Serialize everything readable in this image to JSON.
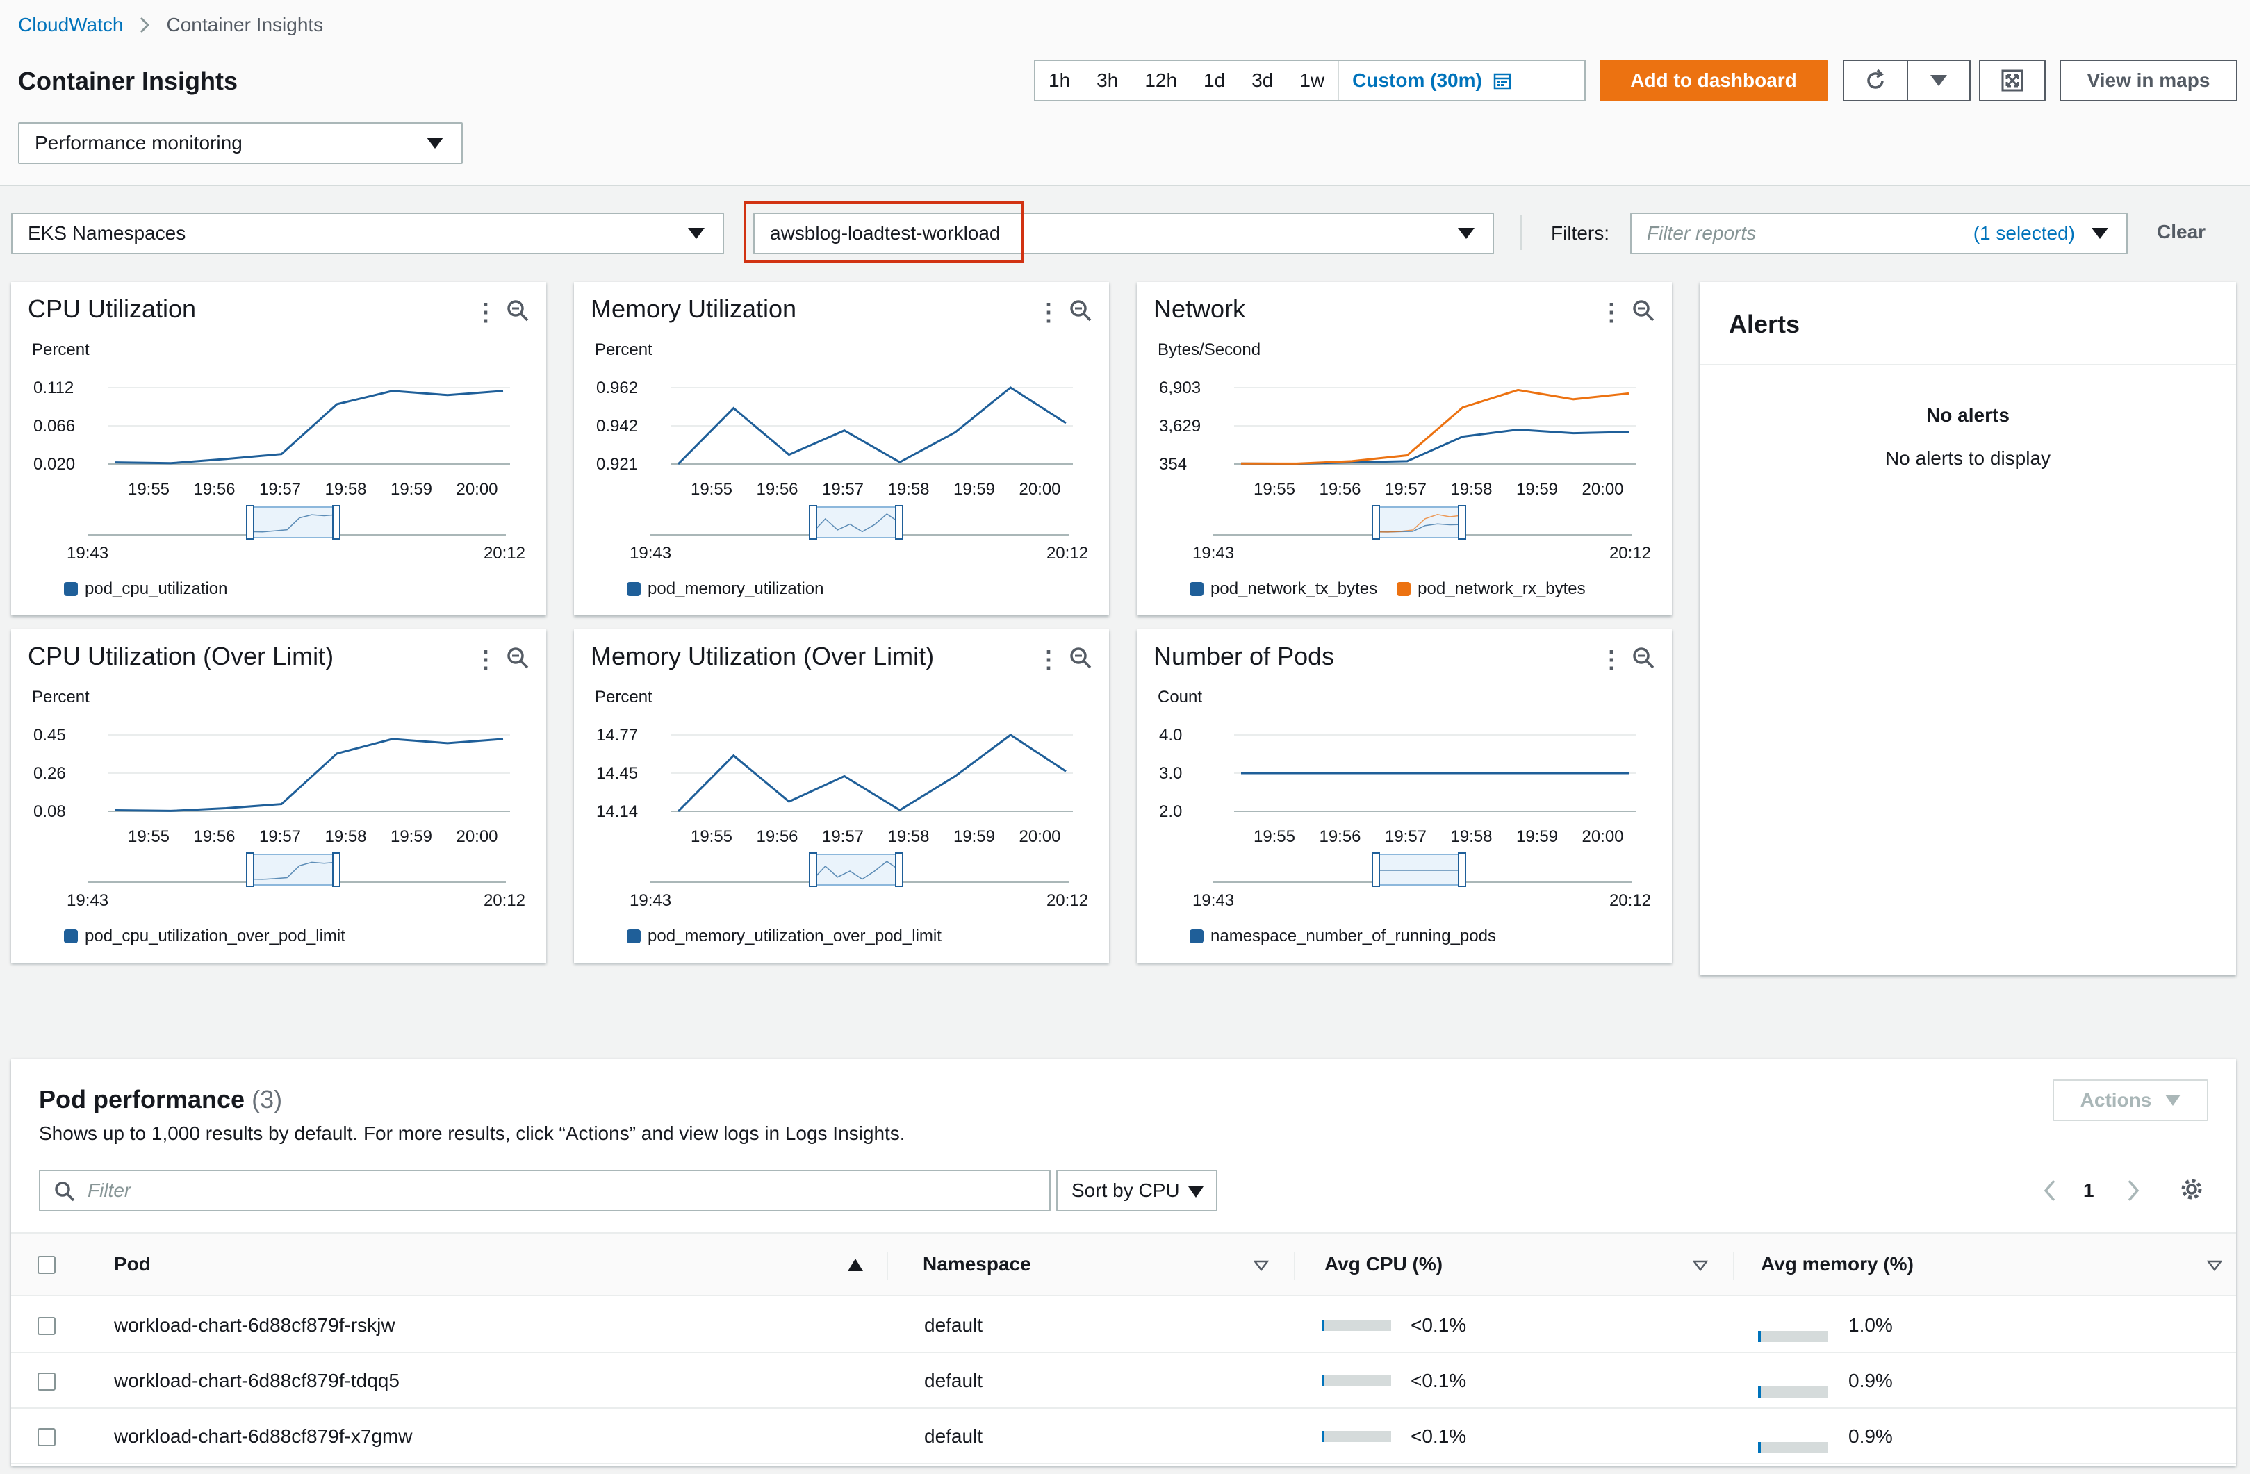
{
  "breadcrumb": {
    "root": "CloudWatch",
    "current": "Container Insights"
  },
  "page_title": "Container Insights",
  "view_select": "Performance monitoring",
  "time_ranges": [
    "1h",
    "3h",
    "12h",
    "1d",
    "3d",
    "1w"
  ],
  "time_custom": "Custom (30m)",
  "actions": {
    "add_dashboard": "Add to dashboard",
    "view_maps": "View in maps"
  },
  "filters": {
    "resource_type": "EKS Namespaces",
    "resource": "awsblog-loadtest-workload",
    "filters_label": "Filters:",
    "filter_placeholder": "Filter reports",
    "filter_count": "(1 selected)",
    "clear": "Clear"
  },
  "colors": {
    "series_blue": "#1f5f99",
    "series_orange": "#ec7211",
    "accent": "#0073bb",
    "highlight": "#d13212"
  },
  "charts": [
    {
      "title": "CPU Utilization",
      "unit": "Percent",
      "yticks": [
        "0.112",
        "0.066",
        "0.020"
      ],
      "ymin": 0.02,
      "ymax": 0.112,
      "xticks": [
        "19:55",
        "19:56",
        "19:57",
        "19:58",
        "19:59",
        "20:00"
      ],
      "range_start": "19:43",
      "range_end": "20:12",
      "series": [
        {
          "name": "pod_cpu_utilization",
          "color": "#1f5f99",
          "x": [
            0,
            1,
            2,
            3,
            4,
            5,
            6,
            7
          ],
          "y": [
            0.022,
            0.021,
            0.026,
            0.032,
            0.092,
            0.108,
            0.103,
            0.108
          ]
        }
      ]
    },
    {
      "title": "Memory Utilization",
      "unit": "Percent",
      "yticks": [
        "0.962",
        "0.942",
        "0.921"
      ],
      "ymin": 0.921,
      "ymax": 0.962,
      "xticks": [
        "19:55",
        "19:56",
        "19:57",
        "19:58",
        "19:59",
        "20:00"
      ],
      "range_start": "19:43",
      "range_end": "20:12",
      "series": [
        {
          "name": "pod_memory_utilization",
          "color": "#1f5f99",
          "x": [
            0,
            1,
            2,
            3,
            4,
            5,
            6,
            7
          ],
          "y": [
            0.921,
            0.951,
            0.926,
            0.939,
            0.922,
            0.938,
            0.962,
            0.943
          ]
        }
      ]
    },
    {
      "title": "Network",
      "unit": "Bytes/Second",
      "yticks": [
        "6,903",
        "3,629",
        "354"
      ],
      "ymin": 354,
      "ymax": 6903,
      "xticks": [
        "19:55",
        "19:56",
        "19:57",
        "19:58",
        "19:59",
        "20:00"
      ],
      "range_start": "19:43",
      "range_end": "20:12",
      "series": [
        {
          "name": "pod_network_tx_bytes",
          "color": "#1f5f99",
          "x": [
            0,
            1,
            2,
            3,
            4,
            5,
            6,
            7
          ],
          "y": [
            400,
            380,
            500,
            600,
            2700,
            3300,
            3000,
            3100
          ]
        },
        {
          "name": "pod_network_rx_bytes",
          "color": "#ec7211",
          "x": [
            0,
            1,
            2,
            3,
            4,
            5,
            6,
            7
          ],
          "y": [
            400,
            390,
            600,
            1100,
            5200,
            6700,
            5900,
            6400
          ]
        }
      ]
    },
    {
      "title": "CPU Utilization (Over Limit)",
      "unit": "Percent",
      "yticks": [
        "0.45",
        "0.26",
        "0.08"
      ],
      "ymin": 0.08,
      "ymax": 0.45,
      "xticks": [
        "19:55",
        "19:56",
        "19:57",
        "19:58",
        "19:59",
        "20:00"
      ],
      "range_start": "19:43",
      "range_end": "20:12",
      "series": [
        {
          "name": "pod_cpu_utilization_over_pod_limit",
          "color": "#1f5f99",
          "x": [
            0,
            1,
            2,
            3,
            4,
            5,
            6,
            7
          ],
          "y": [
            0.085,
            0.082,
            0.095,
            0.115,
            0.36,
            0.43,
            0.41,
            0.43
          ]
        }
      ]
    },
    {
      "title": "Memory Utilization (Over Limit)",
      "unit": "Percent",
      "yticks": [
        "14.77",
        "14.45",
        "14.14"
      ],
      "ymin": 14.14,
      "ymax": 14.77,
      "xticks": [
        "19:55",
        "19:56",
        "19:57",
        "19:58",
        "19:59",
        "20:00"
      ],
      "range_start": "19:43",
      "range_end": "20:12",
      "series": [
        {
          "name": "pod_memory_utilization_over_pod_limit",
          "color": "#1f5f99",
          "x": [
            0,
            1,
            2,
            3,
            4,
            5,
            6,
            7
          ],
          "y": [
            14.14,
            14.6,
            14.22,
            14.43,
            14.15,
            14.43,
            14.77,
            14.47
          ]
        }
      ]
    },
    {
      "title": "Number of Pods",
      "unit": "Count",
      "yticks": [
        "4.0",
        "3.0",
        "2.0"
      ],
      "ymin": 2.0,
      "ymax": 4.0,
      "xticks": [
        "19:55",
        "19:56",
        "19:57",
        "19:58",
        "19:59",
        "20:00"
      ],
      "range_start": "19:43",
      "range_end": "20:12",
      "series": [
        {
          "name": "namespace_number_of_running_pods",
          "color": "#1f5f99",
          "x": [
            0,
            7
          ],
          "y": [
            3.0,
            3.0
          ]
        }
      ]
    }
  ],
  "alerts": {
    "title": "Alerts",
    "empty_title": "No alerts",
    "empty_text": "No alerts to display"
  },
  "pods": {
    "title": "Pod performance",
    "count": "(3)",
    "description": "Shows up to 1,000 results by default. For more results, click “Actions” and view logs in Logs Insights.",
    "actions": "Actions",
    "filter_placeholder": "Filter",
    "sort": "Sort by CPU",
    "page": "1",
    "columns": [
      "Pod",
      "Namespace",
      "Avg CPU (%)",
      "Avg memory (%)"
    ],
    "rows": [
      {
        "pod": "workload-chart-6d88cf879f-rskjw",
        "namespace": "default",
        "cpu": "<0.1%",
        "cpu_pct": 2,
        "memory": "1.0%",
        "mem_pct": 3
      },
      {
        "pod": "workload-chart-6d88cf879f-tdqq5",
        "namespace": "default",
        "cpu": "<0.1%",
        "cpu_pct": 2,
        "memory": "0.9%",
        "mem_pct": 3
      },
      {
        "pod": "workload-chart-6d88cf879f-x7gmw",
        "namespace": "default",
        "cpu": "<0.1%",
        "cpu_pct": 2,
        "memory": "0.9%",
        "mem_pct": 3
      }
    ]
  }
}
